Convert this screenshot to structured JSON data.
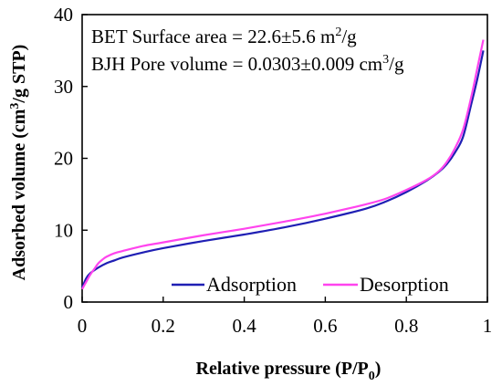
{
  "chart_data": {
    "type": "line",
    "xlabel": "Relative pressure (P/P",
    "xlabel_sub": "0",
    "xlabel_end": ")",
    "ylabel": "Adsorbed volume (cm",
    "ylabel_sup": "3",
    "ylabel_end": "/g STP)",
    "xlim": [
      0,
      1
    ],
    "ylim": [
      0,
      40
    ],
    "x_ticks": [
      "0",
      "0.2",
      "0.4",
      "0.6",
      "0.8",
      "1"
    ],
    "y_ticks": [
      "0",
      "10",
      "20",
      "30",
      "40"
    ],
    "grid": false,
    "legend_position": "bottom-right",
    "annotations": {
      "bet_text": "BET Surface area =  22.6±5.6 m",
      "bet_sup": "2",
      "bet_end": "/g",
      "bjh_text": "BJH Pore volume = 0.0303±0.009 cm",
      "bjh_sup": "3",
      "bjh_end": "/g"
    },
    "series": [
      {
        "name": "Adsorption",
        "color": "#1f1fb4",
        "x": [
          0.0,
          0.01,
          0.02,
          0.04,
          0.06,
          0.08,
          0.1,
          0.15,
          0.2,
          0.3,
          0.4,
          0.5,
          0.6,
          0.7,
          0.75,
          0.8,
          0.85,
          0.88,
          0.9,
          0.92,
          0.94,
          0.96,
          0.975,
          0.99
        ],
        "y": [
          2.0,
          3.3,
          4.0,
          4.8,
          5.4,
          5.8,
          6.2,
          6.9,
          7.5,
          8.5,
          9.4,
          10.4,
          11.6,
          13.0,
          14.0,
          15.3,
          16.9,
          18.1,
          19.2,
          20.8,
          23.0,
          27.5,
          31.0,
          35.0
        ]
      },
      {
        "name": "Desorption",
        "color": "#ff44ee",
        "x": [
          0.0,
          0.01,
          0.02,
          0.03,
          0.04,
          0.05,
          0.06,
          0.08,
          0.1,
          0.15,
          0.2,
          0.3,
          0.4,
          0.5,
          0.6,
          0.7,
          0.75,
          0.8,
          0.85,
          0.88,
          0.9,
          0.92,
          0.94,
          0.96,
          0.975,
          0.99
        ],
        "y": [
          1.8,
          2.8,
          3.8,
          4.6,
          5.4,
          5.9,
          6.3,
          6.8,
          7.1,
          7.8,
          8.3,
          9.3,
          10.2,
          11.2,
          12.3,
          13.6,
          14.4,
          15.6,
          17.0,
          18.2,
          19.5,
          21.4,
          24.0,
          28.5,
          32.5,
          36.5
        ]
      }
    ]
  }
}
